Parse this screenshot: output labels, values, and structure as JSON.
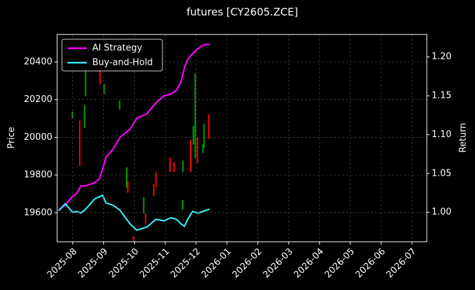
{
  "chart_data": {
    "type": "candlestick",
    "title": "futures [CY2605.ZCE]",
    "ylabel": "Price",
    "y2label": "Return",
    "xlim": [
      2025.541,
      2026.54
    ],
    "ylim": [
      19446,
      20546
    ],
    "y2lim": [
      0.962,
      1.229
    ],
    "xticks": [
      {
        "value": 2025.5833,
        "label": "2025-08"
      },
      {
        "value": 2025.6667,
        "label": "2025-09"
      },
      {
        "value": 2025.75,
        "label": "2025-10"
      },
      {
        "value": 2025.8333,
        "label": "2025-11"
      },
      {
        "value": 2025.9167,
        "label": "2025-12"
      },
      {
        "value": 2026.0,
        "label": "2026-01"
      },
      {
        "value": 2026.0833,
        "label": "2026-02"
      },
      {
        "value": 2026.1667,
        "label": "2026-03"
      },
      {
        "value": 2026.25,
        "label": "2026-04"
      },
      {
        "value": 2026.3333,
        "label": "2026-05"
      },
      {
        "value": 2026.4167,
        "label": "2026-06"
      },
      {
        "value": 2026.5,
        "label": "2026-07"
      }
    ],
    "yticks": [
      19600,
      19800,
      20000,
      20200,
      20400
    ],
    "y2ticks": [
      {
        "value": 1.0,
        "label": "1.00"
      },
      1.05,
      {
        "value": 1.1,
        "label": "1.10"
      },
      1.15,
      {
        "value": 1.2,
        "label": "1.20"
      }
    ],
    "grid": true,
    "legend": "upper left",
    "up_color": "#00a000",
    "down_color": "#ff0000",
    "candles": {
      "x": [
        2025.582,
        2025.602,
        2025.615,
        2025.618,
        2025.657,
        2025.668,
        2025.71,
        2025.729,
        2025.732,
        2025.747,
        2025.775,
        2025.78,
        2025.802,
        2025.808,
        2025.846,
        2025.857,
        2025.88,
        2025.881,
        2025.902,
        2025.909,
        2025.914,
        2025.92,
        2025.935,
        2025.938,
        2025.951
      ],
      "open": [
        20101,
        20090,
        20050,
        20218,
        20375,
        20229,
        20148,
        19732,
        19768,
        19476,
        19596,
        19596,
        19754,
        19816,
        19892,
        19867,
        19615,
        19816,
        19988,
        19962,
        19889,
        19998,
        19918,
        19944,
        20123
      ],
      "close": [
        20137,
        19849,
        20170,
        20364,
        20280,
        20284,
        20196,
        19841,
        19706,
        19450,
        19684,
        19542,
        19688,
        19735,
        19816,
        19816,
        19669,
        19878,
        19816,
        20061,
        20339,
        19863,
        19962,
        20072,
        19991
      ]
    },
    "x": [
      2025.545,
      2025.563,
      2025.583,
      2025.594,
      2025.605,
      2025.618,
      2025.642,
      2025.655,
      2025.664,
      2025.673,
      2025.692,
      2025.71,
      2025.738,
      2025.756,
      2025.784,
      2025.808,
      2025.83,
      2025.848,
      2025.863,
      2025.876,
      2025.885,
      2025.894,
      2025.907,
      2025.922,
      2025.94,
      2025.953
    ],
    "series": [
      {
        "name": "AI Strategy",
        "color": "#ff00ff",
        "axis": "y2",
        "values": [
          1.003,
          1.009,
          1.021,
          1.024,
          1.034,
          1.034,
          1.038,
          1.043,
          1.056,
          1.071,
          1.081,
          1.096,
          1.107,
          1.121,
          1.127,
          1.141,
          1.15,
          1.152,
          1.157,
          1.168,
          1.186,
          1.197,
          1.204,
          1.211,
          1.216,
          1.216
        ]
      },
      {
        "name": "Buy-and-Hold",
        "color": "#33e8f0",
        "axis": "y2",
        "values": [
          1.002,
          1.011,
          1.0,
          1.001,
          0.999,
          1.004,
          1.017,
          1.02,
          1.022,
          1.012,
          1.009,
          1.003,
          0.985,
          0.977,
          0.981,
          0.991,
          0.989,
          0.993,
          0.991,
          0.985,
          0.982,
          0.991,
          1.001,
          0.999,
          1.002,
          1.004
        ]
      }
    ]
  }
}
